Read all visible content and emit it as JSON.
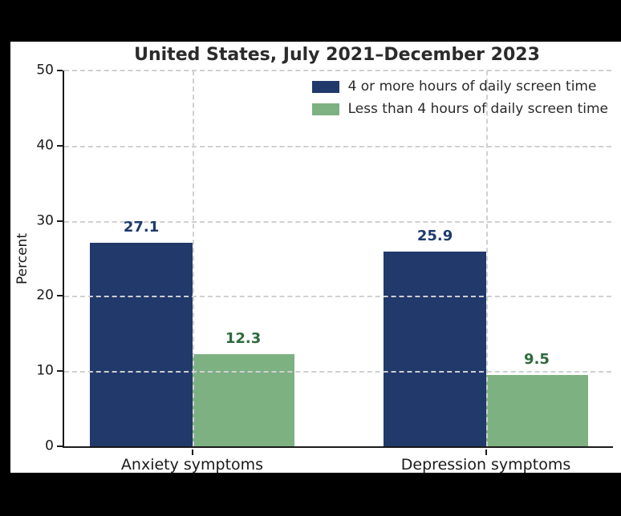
{
  "window": {
    "background_color": "#000000",
    "panel_color": "#ffffff"
  },
  "chart_data": {
    "type": "bar",
    "title": "United States, July 2021–December 2023",
    "categories": [
      "Anxiety symptoms",
      "Depression symptoms"
    ],
    "series": [
      {
        "name": "4 or more hours of daily screen time",
        "values": [
          27.1,
          25.9
        ],
        "color": "#21396b",
        "value_label_color": "#1e3a6d"
      },
      {
        "name": "Less than 4 hours of daily screen time",
        "values": [
          12.3,
          9.5
        ],
        "color": "#7db182",
        "value_label_color": "#2d6a3e"
      }
    ],
    "xlabel": "",
    "ylabel": "Percent",
    "ylim": [
      0,
      50
    ],
    "yticks": [
      "0",
      "10",
      "20",
      "30",
      "40",
      "50"
    ],
    "grid": {
      "style": "dashed",
      "color": "#d0d0d0",
      "horizontal_at": [
        10,
        20,
        30,
        40,
        50
      ],
      "vertical_at_category_centers": true,
      "drawn_above_bars": true
    },
    "legend": {
      "position": "upper right",
      "frame": false
    }
  }
}
